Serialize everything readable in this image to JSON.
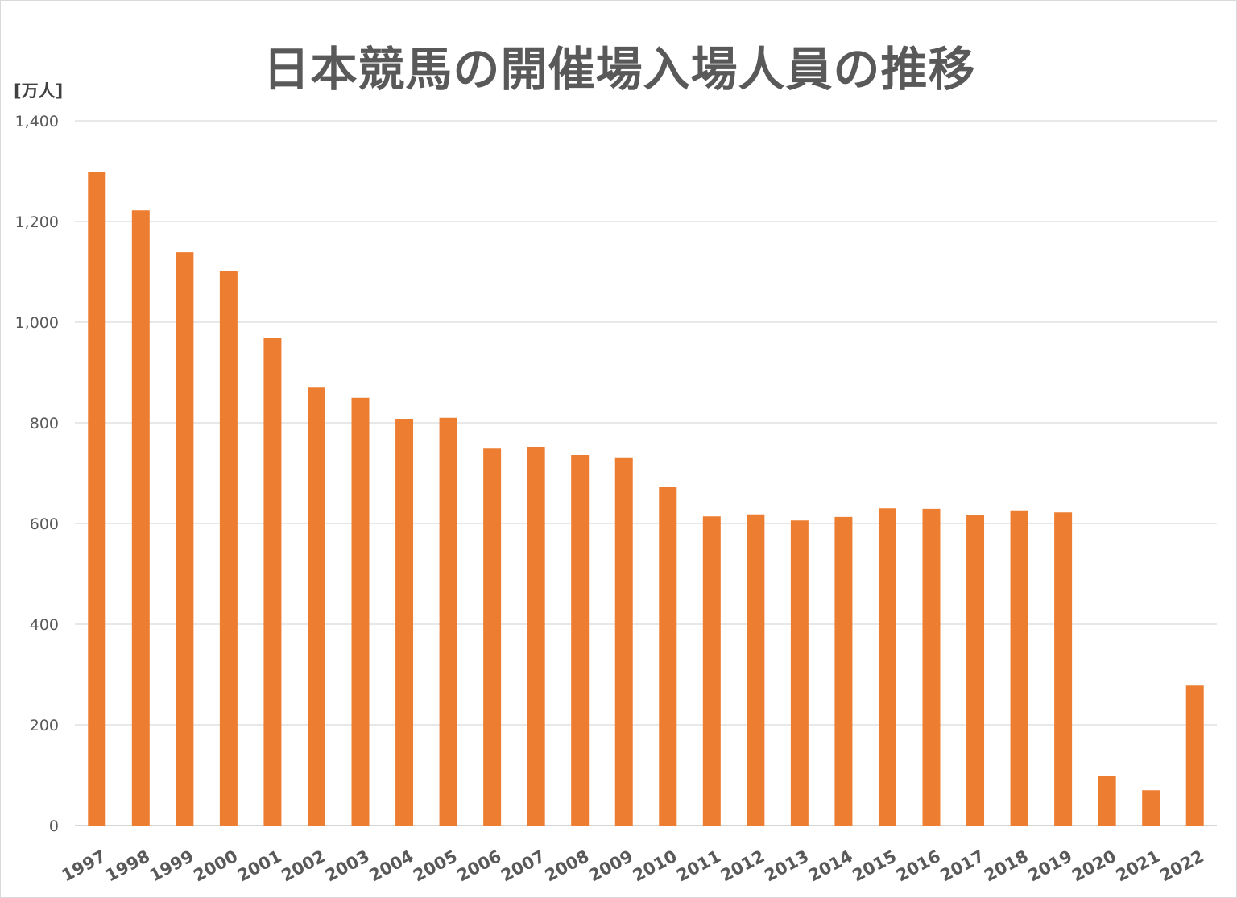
{
  "chart_data": {
    "type": "bar",
    "title": "日本競馬の開催場入場人員の推移",
    "ylabel": "[万人]",
    "xlabel": "",
    "categories": [
      "1997",
      "1998",
      "1999",
      "2000",
      "2001",
      "2002",
      "2003",
      "2004",
      "2005",
      "2006",
      "2007",
      "2008",
      "2009",
      "2010",
      "2011",
      "2012",
      "2013",
      "2014",
      "2015",
      "2016",
      "2017",
      "2018",
      "2019",
      "2020",
      "2021",
      "2022"
    ],
    "values": [
      1299,
      1222,
      1139,
      1101,
      968,
      870,
      850,
      808,
      810,
      750,
      752,
      736,
      730,
      672,
      614,
      618,
      606,
      613,
      630,
      629,
      616,
      626,
      622,
      98,
      70,
      278
    ],
    "ylim": [
      0,
      1400
    ],
    "yticks": [
      "0",
      "200",
      "400",
      "600",
      "800",
      "1,000",
      "1,200",
      "1,400"
    ],
    "grid": true,
    "bar_color": "#ED7D31"
  }
}
